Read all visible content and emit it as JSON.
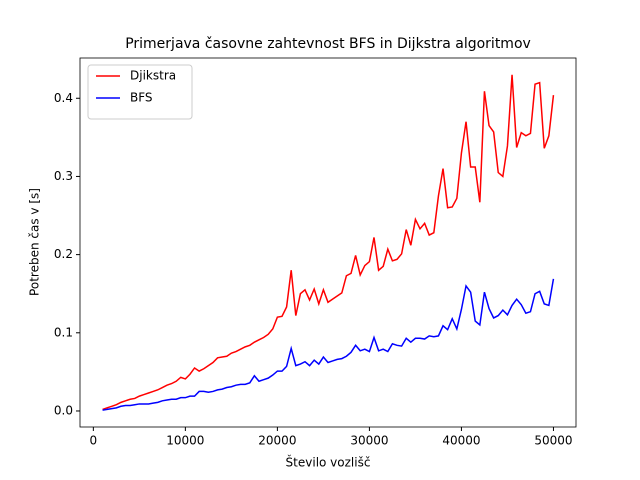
{
  "chart_data": {
    "type": "line",
    "title": "Primerjava časovne zahtevnost BFS in Dijkstra algoritmov",
    "x_label": "Število vozlišč",
    "y_label": "Potreben čas v [s]",
    "x": [
      1000,
      1500,
      2000,
      2500,
      3000,
      3500,
      4000,
      4500,
      5000,
      5500,
      6000,
      6500,
      7000,
      7500,
      8000,
      8500,
      9000,
      9500,
      10000,
      10500,
      11000,
      11500,
      12000,
      12500,
      13000,
      13500,
      14000,
      14500,
      15000,
      15500,
      16000,
      16500,
      17000,
      17500,
      18000,
      18500,
      19000,
      19500,
      20000,
      20500,
      21000,
      21500,
      22000,
      22500,
      23000,
      23500,
      24000,
      24500,
      25000,
      25500,
      26000,
      26500,
      27000,
      27500,
      28000,
      28500,
      29000,
      29500,
      30000,
      30500,
      31000,
      31500,
      32000,
      32500,
      33000,
      33500,
      34000,
      34500,
      35000,
      35500,
      36000,
      36500,
      37000,
      37500,
      38000,
      38500,
      39000,
      39500,
      40000,
      40500,
      41000,
      41500,
      42000,
      42500,
      43000,
      43500,
      44000,
      44500,
      45000,
      45500,
      46000,
      46500,
      47000,
      47500,
      48000,
      48500,
      49000,
      49500,
      50000
    ],
    "series": [
      {
        "name": "Djikstra",
        "color": "#ff0000",
        "values": [
          0.002,
          0.004,
          0.006,
          0.008,
          0.011,
          0.013,
          0.015,
          0.016,
          0.019,
          0.021,
          0.023,
          0.025,
          0.027,
          0.03,
          0.033,
          0.035,
          0.038,
          0.043,
          0.041,
          0.047,
          0.055,
          0.051,
          0.054,
          0.058,
          0.062,
          0.068,
          0.069,
          0.07,
          0.074,
          0.076,
          0.079,
          0.082,
          0.084,
          0.088,
          0.091,
          0.094,
          0.098,
          0.105,
          0.12,
          0.121,
          0.133,
          0.18,
          0.122,
          0.15,
          0.155,
          0.142,
          0.156,
          0.137,
          0.155,
          0.139,
          0.143,
          0.147,
          0.151,
          0.173,
          0.176,
          0.199,
          0.174,
          0.186,
          0.191,
          0.222,
          0.18,
          0.185,
          0.207,
          0.192,
          0.194,
          0.201,
          0.232,
          0.212,
          0.245,
          0.233,
          0.24,
          0.225,
          0.228,
          0.275,
          0.31,
          0.26,
          0.261,
          0.272,
          0.33,
          0.37,
          0.312,
          0.312,
          0.267,
          0.409,
          0.365,
          0.357,
          0.305,
          0.3,
          0.339,
          0.43,
          0.337,
          0.356,
          0.352,
          0.355,
          0.418,
          0.42,
          0.336,
          0.352,
          0.404
        ]
      },
      {
        "name": "BFS",
        "color": "#0000ff",
        "values": [
          0.001,
          0.002,
          0.003,
          0.004,
          0.006,
          0.007,
          0.007,
          0.008,
          0.009,
          0.009,
          0.009,
          0.01,
          0.011,
          0.013,
          0.014,
          0.015,
          0.015,
          0.017,
          0.017,
          0.019,
          0.019,
          0.025,
          0.025,
          0.024,
          0.025,
          0.027,
          0.028,
          0.03,
          0.031,
          0.033,
          0.034,
          0.034,
          0.036,
          0.045,
          0.038,
          0.04,
          0.042,
          0.046,
          0.051,
          0.051,
          0.057,
          0.08,
          0.058,
          0.06,
          0.063,
          0.058,
          0.065,
          0.06,
          0.069,
          0.062,
          0.064,
          0.066,
          0.067,
          0.07,
          0.075,
          0.084,
          0.077,
          0.079,
          0.076,
          0.094,
          0.077,
          0.079,
          0.076,
          0.086,
          0.084,
          0.083,
          0.093,
          0.088,
          0.093,
          0.093,
          0.092,
          0.096,
          0.095,
          0.096,
          0.109,
          0.104,
          0.118,
          0.105,
          0.13,
          0.16,
          0.152,
          0.115,
          0.11,
          0.152,
          0.131,
          0.119,
          0.122,
          0.129,
          0.123,
          0.135,
          0.143,
          0.136,
          0.125,
          0.127,
          0.15,
          0.153,
          0.137,
          0.135,
          0.169
        ]
      }
    ],
    "xlim": [
      -1450,
      52450
    ],
    "ylim": [
      -0.0205,
      0.4515
    ],
    "xticks": [
      0,
      10000,
      20000,
      30000,
      40000,
      50000
    ],
    "yticks": [
      {
        "value": 0,
        "label": "0.0"
      },
      0.1,
      0.2,
      0.3,
      0.4
    ],
    "legend": "upper left"
  }
}
